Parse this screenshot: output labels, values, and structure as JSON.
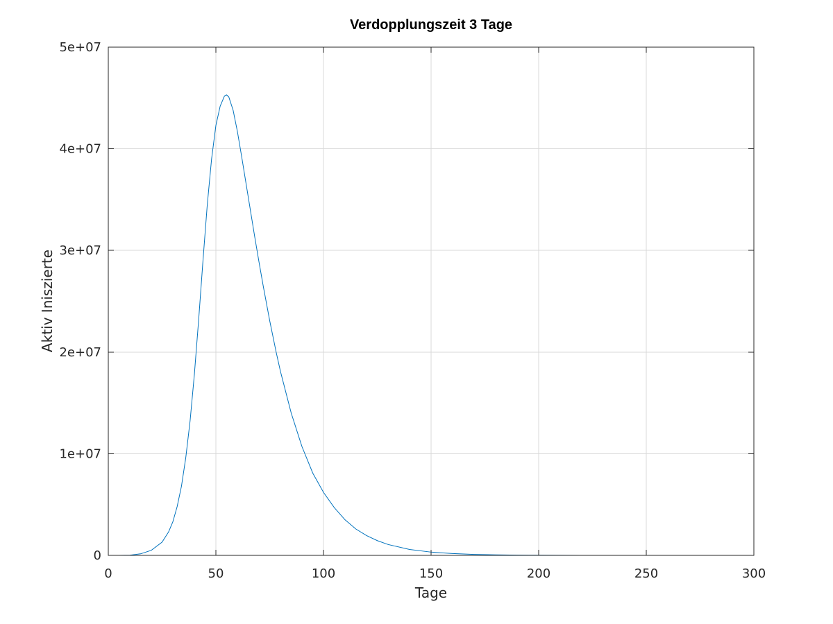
{
  "chart_data": {
    "type": "line",
    "title": "Verdopplungszeit 3 Tage",
    "xlabel": "Tage",
    "ylabel": "Aktiv Iniszierte",
    "xlim": [
      0,
      300
    ],
    "ylim": [
      0,
      50000000
    ],
    "x_ticks": [
      0,
      50,
      100,
      150,
      200,
      250,
      300
    ],
    "x_tick_labels": [
      "0",
      "50",
      "100",
      "150",
      "200",
      "250",
      "300"
    ],
    "y_ticks": [
      0,
      10000000,
      20000000,
      30000000,
      40000000,
      50000000
    ],
    "y_tick_labels": [
      "0",
      "1e+07",
      "2e+07",
      "3e+07",
      "4e+07",
      "5e+07"
    ],
    "grid": true,
    "series_color": "#0072bd",
    "series": [
      {
        "x": [
          0,
          5,
          10,
          15,
          20,
          25,
          28,
          30,
          32,
          34,
          36,
          38,
          40,
          42,
          44,
          46,
          48,
          50,
          52,
          54,
          55,
          56,
          58,
          60,
          62,
          64,
          66,
          68,
          70,
          72,
          75,
          78,
          80,
          85,
          90,
          95,
          100,
          105,
          110,
          115,
          120,
          125,
          130,
          140,
          150,
          160,
          170,
          180,
          190,
          200,
          210,
          220,
          230,
          240,
          250,
          260,
          270,
          280,
          290,
          300
        ],
        "values": [
          0,
          2000,
          20000,
          150000,
          500000,
          1300000,
          2300000,
          3300000,
          4800000,
          6800000,
          9600000,
          13200000,
          17800000,
          23200000,
          29000000,
          34500000,
          39000000,
          42300000,
          44200000,
          45200000,
          45300000,
          45100000,
          43800000,
          41700000,
          39200000,
          36600000,
          34000000,
          31400000,
          28900000,
          26500000,
          23100000,
          20000000,
          18100000,
          14000000,
          10700000,
          8100000,
          6200000,
          4700000,
          3500000,
          2600000,
          1950000,
          1450000,
          1070000,
          580000,
          320000,
          175000,
          95000,
          52000,
          28000,
          15000,
          8000,
          4300,
          2300,
          1200,
          600,
          300,
          150,
          80,
          40,
          20
        ]
      }
    ]
  }
}
